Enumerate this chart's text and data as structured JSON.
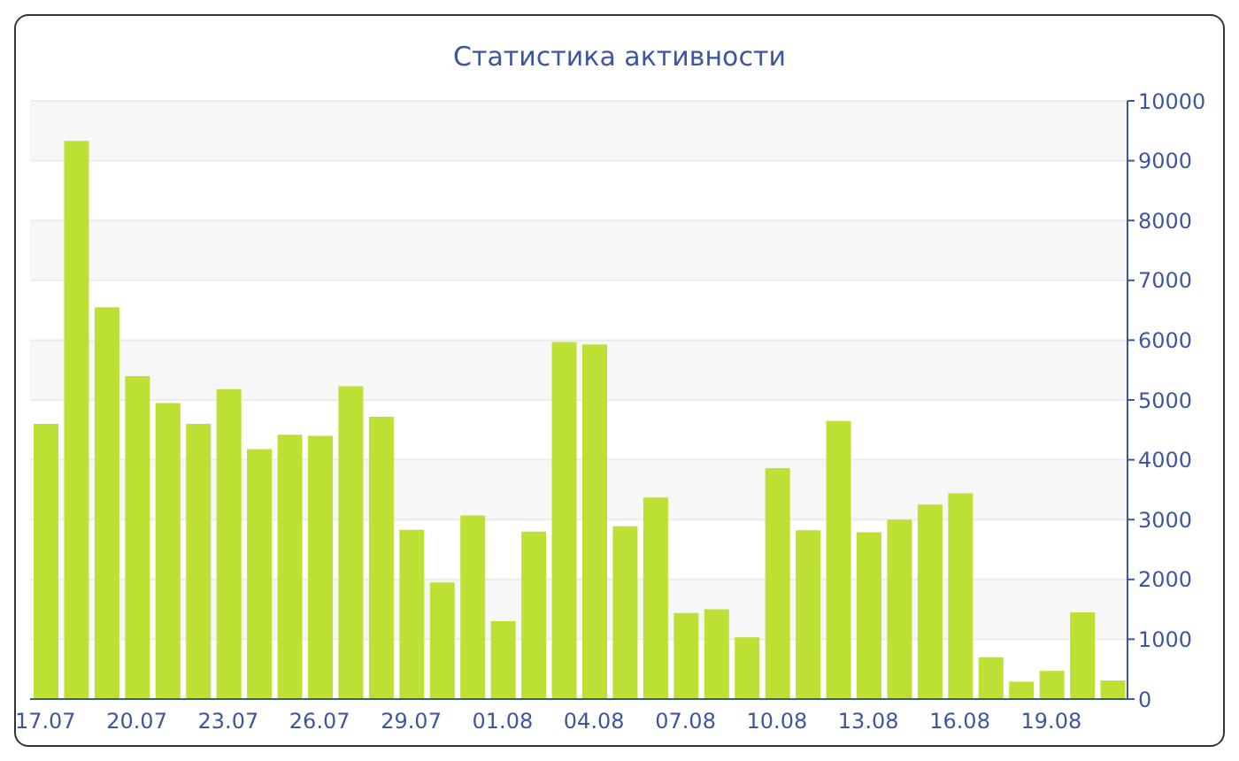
{
  "chart_data": {
    "type": "bar",
    "title": "Статистика активности",
    "categories": [
      "17.07",
      null,
      null,
      "20.07",
      null,
      null,
      "23.07",
      null,
      null,
      "26.07",
      null,
      null,
      "29.07",
      null,
      null,
      "01.08",
      null,
      null,
      "04.08",
      null,
      null,
      "07.08",
      null,
      null,
      "10.08",
      null,
      null,
      "13.08",
      null,
      null,
      "16.08",
      null,
      null,
      "19.08",
      null,
      null
    ],
    "values": [
      4600,
      9330,
      6550,
      5400,
      4950,
      4600,
      5180,
      4180,
      4420,
      4400,
      5230,
      4720,
      2830,
      1950,
      3070,
      1300,
      2800,
      5970,
      5930,
      2890,
      3370,
      1440,
      1500,
      1030,
      3860,
      2820,
      4650,
      2790,
      3000,
      3250,
      3440,
      700,
      290,
      470,
      1450,
      310
    ],
    "color": "#bce033",
    "ylim": [
      0,
      10000
    ],
    "yticks": [
      0,
      1000,
      2000,
      3000,
      4000,
      5000,
      6000,
      7000,
      8000,
      9000,
      10000
    ],
    "grid": "y"
  }
}
